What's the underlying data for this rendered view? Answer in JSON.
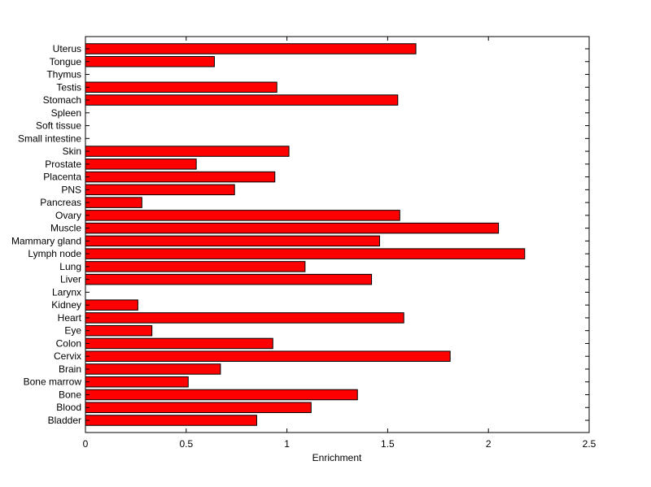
{
  "chart_data": {
    "type": "bar",
    "orientation": "horizontal",
    "title": "",
    "xlabel": "Enrichment",
    "ylabel": "",
    "xlim": [
      0,
      2.5
    ],
    "xticks": [
      0,
      0.5,
      1,
      1.5,
      2,
      2.5
    ],
    "xtick_labels": [
      "0",
      "0.5",
      "1",
      "1.5",
      "2",
      "2.5"
    ],
    "grid": false,
    "bar_color": "#ff0000",
    "categories": [
      "Bladder",
      "Blood",
      "Bone",
      "Bone marrow",
      "Brain",
      "Cervix",
      "Colon",
      "Eye",
      "Heart",
      "Kidney",
      "Larynx",
      "Liver",
      "Lung",
      "Lymph node",
      "Mammary gland",
      "Muscle",
      "Ovary",
      "Pancreas",
      "PNS",
      "Placenta",
      "Prostate",
      "Skin",
      "Small intestine",
      "Soft tissue",
      "Spleen",
      "Stomach",
      "Testis",
      "Thymus",
      "Tongue",
      "Uterus"
    ],
    "values": [
      0.85,
      1.12,
      1.35,
      0.51,
      0.67,
      1.81,
      0.93,
      0.33,
      1.58,
      0.26,
      0,
      1.42,
      1.09,
      2.18,
      1.46,
      2.05,
      1.56,
      0.28,
      0.74,
      0.94,
      0.55,
      1.01,
      0,
      0,
      0,
      1.55,
      0.95,
      0,
      0.64,
      1.64
    ]
  }
}
